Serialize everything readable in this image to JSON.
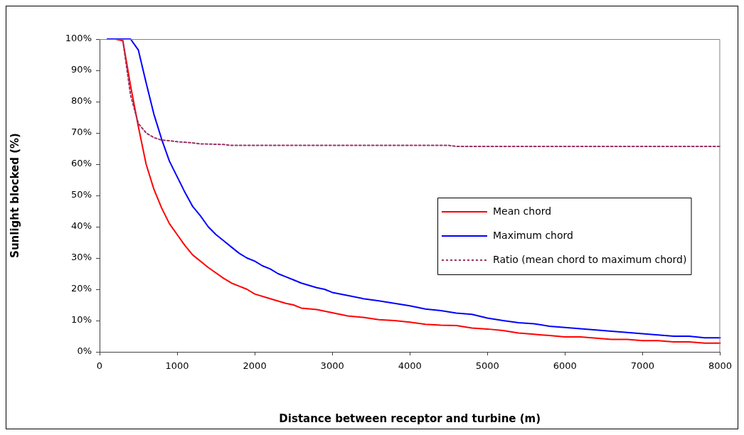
{
  "chart_data": {
    "type": "line",
    "xlabel": "Distance between receptor and turbine (m)",
    "ylabel": "Sunlight blocked (%)",
    "xlim": [
      0,
      8000
    ],
    "xticks": [
      0,
      1000,
      2000,
      3000,
      4000,
      5000,
      6000,
      7000,
      8000
    ],
    "ylim": [
      0,
      100
    ],
    "yticks": [
      {
        "value": 0,
        "label": "0%"
      },
      {
        "value": 10,
        "label": "10%"
      },
      {
        "value": 20,
        "label": "20%"
      },
      {
        "value": 30,
        "label": "30%"
      },
      {
        "value": 40,
        "label": "40%"
      },
      {
        "value": 50,
        "label": "50%"
      },
      {
        "value": 60,
        "label": "60%"
      },
      {
        "value": 70,
        "label": "70%"
      },
      {
        "value": 80,
        "label": "80%"
      },
      {
        "value": 90,
        "label": "90%"
      },
      {
        "value": 100,
        "label": "100%"
      }
    ],
    "grid": false,
    "legend": "right",
    "marker": "none",
    "series": [
      {
        "name": "Mean chord",
        "color": "#ff0000",
        "line_style": "solid",
        "x": [
          200,
          300,
          400,
          500,
          600,
          700,
          800,
          900,
          1000,
          1100,
          1200,
          1400,
          1600,
          1700,
          1800,
          1900,
          2000,
          2200,
          2400,
          2500,
          2600,
          2800,
          3000,
          3200,
          3400,
          3600,
          3800,
          4000,
          4200,
          4400,
          4600,
          4800,
          5000,
          5200,
          5400,
          5600,
          5800,
          6000,
          6200,
          6400,
          6600,
          6800,
          7000,
          7200,
          7400,
          7600,
          7800,
          8000
        ],
        "values": [
          100,
          99.5,
          85,
          72,
          60,
          52,
          46,
          41,
          37.5,
          34,
          31,
          27,
          23.5,
          22,
          21,
          20,
          18.5,
          17,
          15.5,
          15,
          14,
          13.5,
          12.5,
          11.5,
          11,
          10.3,
          10,
          9.5,
          8.8,
          8.5,
          8.4,
          7.6,
          7.3,
          6.8,
          6,
          5.6,
          5.2,
          4.8,
          4.8,
          4.4,
          4,
          4,
          3.6,
          3.6,
          3.2,
          3.2,
          2.8,
          2.8
        ]
      },
      {
        "name": "Maximum chord",
        "color": "#0000ff",
        "line_style": "solid",
        "x": [
          100,
          200,
          300,
          400,
          500,
          600,
          700,
          800,
          900,
          1000,
          1100,
          1200,
          1300,
          1400,
          1500,
          1600,
          1700,
          1800,
          1900,
          2000,
          2100,
          2200,
          2300,
          2400,
          2500,
          2600,
          2800,
          2900,
          3000,
          3200,
          3400,
          3600,
          3800,
          4000,
          4200,
          4400,
          4600,
          4800,
          5000,
          5200,
          5400,
          5600,
          5800,
          6000,
          6200,
          6400,
          6600,
          6800,
          7000,
          7200,
          7400,
          7600,
          7800,
          8000
        ],
        "values": [
          100,
          100,
          100,
          100,
          96.5,
          86,
          76,
          68,
          61,
          56,
          51,
          46.5,
          43.5,
          40,
          37.5,
          35.5,
          33.5,
          31.5,
          30,
          29,
          27.5,
          26.5,
          25,
          24,
          23,
          22,
          20.5,
          20,
          19,
          18,
          17,
          16.3,
          15.5,
          14.7,
          13.7,
          13.2,
          12.4,
          12,
          10.8,
          10,
          9.3,
          9,
          8.2,
          7.8,
          7.4,
          7,
          6.6,
          6.2,
          5.8,
          5.4,
          5,
          5,
          4.5,
          4.5
        ]
      },
      {
        "name": "Ratio (mean chord to maximum chord)",
        "color": "#993366",
        "line_style": "dotted",
        "x": [
          300,
          400,
          500,
          600,
          700,
          800,
          900,
          1000,
          1200,
          1300,
          1600,
          1700,
          2000,
          3000,
          4000,
          4500,
          4600,
          5000,
          6000,
          7000,
          8000
        ],
        "values": [
          99.5,
          82,
          73,
          70,
          68.5,
          67.7,
          67.5,
          67.2,
          66.8,
          66.5,
          66.3,
          66,
          66,
          66,
          66,
          66,
          65.7,
          65.7,
          65.7,
          65.7,
          65.7
        ]
      }
    ]
  }
}
